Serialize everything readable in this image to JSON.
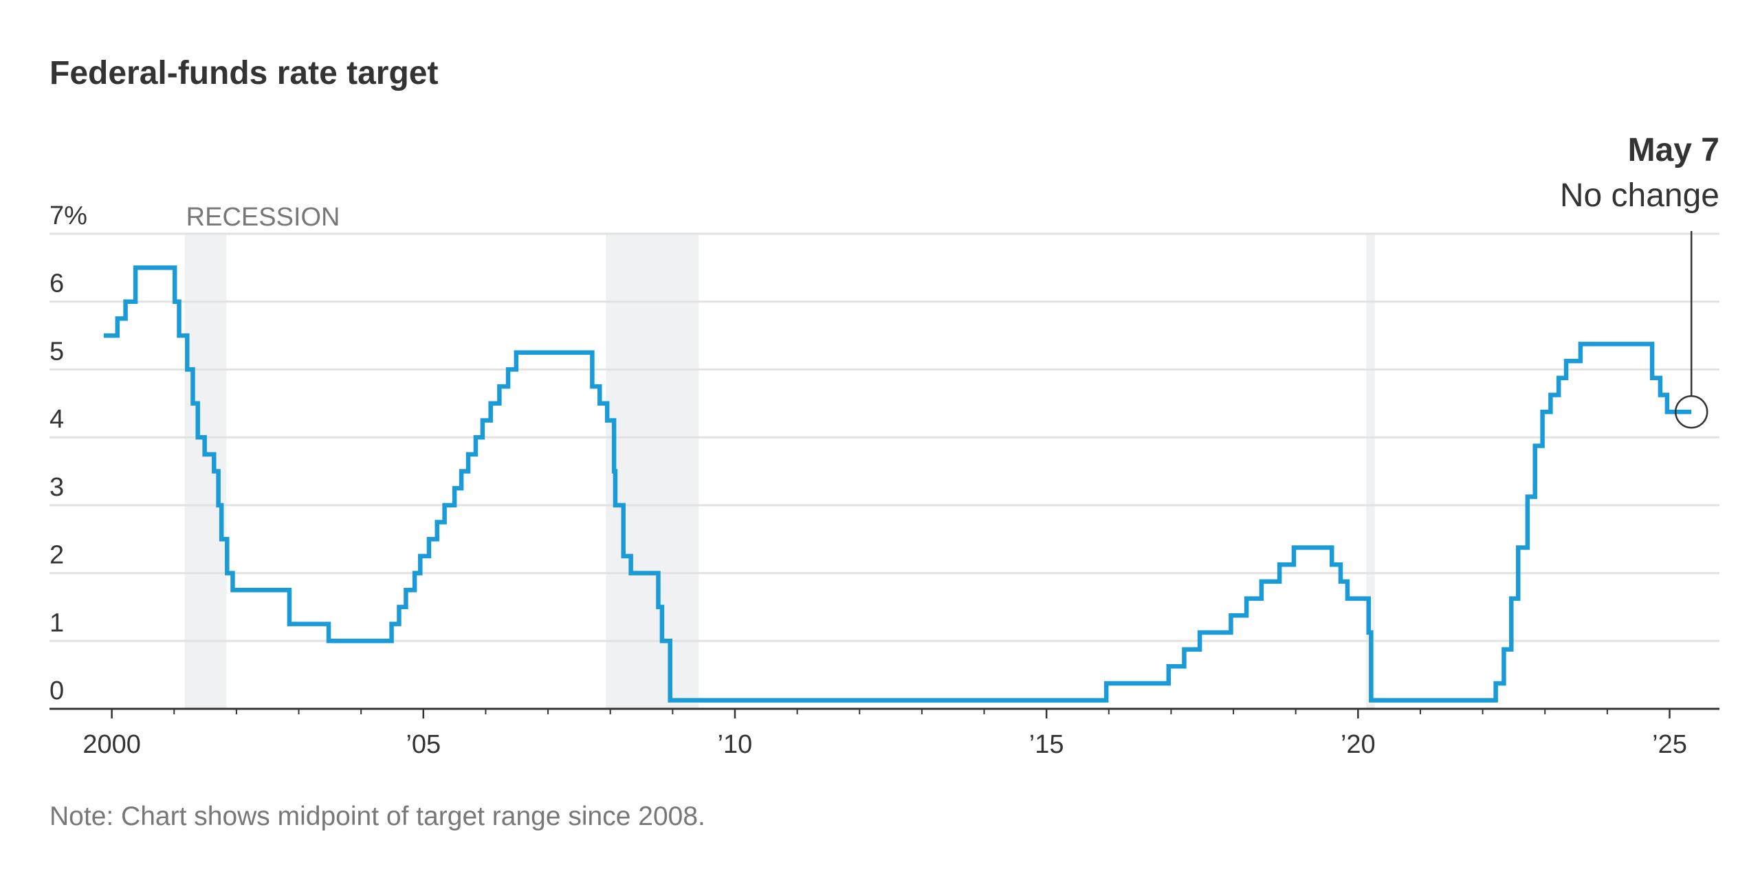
{
  "chart_data": {
    "type": "step",
    "title": "Federal-funds rate target",
    "note": "Note: Chart shows midpoint of target range since 2008.",
    "recession_label": "RECESSION",
    "recessions": [
      [
        2001.17,
        2001.84
      ],
      [
        2007.93,
        2009.42
      ],
      [
        2020.13,
        2020.27
      ]
    ],
    "recession_color": "#f0f1f2",
    "annotation": {
      "title": "May 7",
      "text": "No change",
      "x": 2025.35,
      "y": 4.375
    },
    "xlim": [
      1999,
      2025.8
    ],
    "xticks": [
      2000,
      {
        "value": 2005,
        "label": "’05"
      },
      {
        "value": 2010,
        "label": "’10"
      },
      {
        "value": 2015,
        "label": "’15"
      },
      {
        "value": 2020,
        "label": "’20"
      },
      {
        "value": 2025,
        "label": "’25"
      }
    ],
    "xminor_ticks": [
      2001,
      2002,
      2003,
      2004,
      2006,
      2007,
      2008,
      2009,
      2011,
      2012,
      2013,
      2014,
      2016,
      2017,
      2018,
      2019,
      2021,
      2022,
      2023,
      2024
    ],
    "ylim": [
      0,
      7
    ],
    "yticks": [
      0,
      1,
      2,
      3,
      4,
      5,
      6,
      {
        "value": 7,
        "label": "7%"
      }
    ],
    "grid": true,
    "series": [
      {
        "color": "#1a9bd7",
        "x": [
          1999.87,
          2000.09,
          2000.22,
          2000.38,
          2001.01,
          2001.08,
          2001.21,
          2001.3,
          2001.38,
          2001.49,
          2001.64,
          2001.71,
          2001.76,
          2001.85,
          2001.94,
          2002.85,
          2003.48,
          2004.49,
          2004.61,
          2004.72,
          2004.86,
          2004.95,
          2005.09,
          2005.22,
          2005.34,
          2005.5,
          2005.61,
          2005.72,
          2005.84,
          2005.95,
          2006.08,
          2006.22,
          2006.36,
          2006.49,
          2007.71,
          2007.83,
          2007.95,
          2008.06,
          2008.08,
          2008.21,
          2008.33,
          2008.77,
          2008.83,
          2008.96,
          2015.96,
          2016.96,
          2017.21,
          2017.46,
          2017.96,
          2018.21,
          2018.45,
          2018.74,
          2018.97,
          2019.58,
          2019.72,
          2019.83,
          2020.17,
          2020.21,
          2022.21,
          2022.34,
          2022.46,
          2022.57,
          2022.72,
          2022.84,
          2022.96,
          2023.09,
          2023.22,
          2023.34,
          2023.57,
          2024.72,
          2024.85,
          2024.96,
          2025.35
        ],
        "values": [
          5.5,
          5.75,
          6.0,
          6.5,
          6.0,
          5.5,
          5.0,
          4.5,
          4.0,
          3.75,
          3.5,
          3.0,
          2.5,
          2.0,
          1.75,
          1.25,
          1.0,
          1.25,
          1.5,
          1.75,
          2.0,
          2.25,
          2.5,
          2.75,
          3.0,
          3.25,
          3.5,
          3.75,
          4.0,
          4.25,
          4.5,
          4.75,
          5.0,
          5.25,
          4.75,
          4.5,
          4.25,
          3.5,
          3.0,
          2.25,
          2.0,
          1.5,
          1.0,
          0.125,
          0.375,
          0.625,
          0.875,
          1.125,
          1.375,
          1.625,
          1.875,
          2.125,
          2.375,
          2.125,
          1.875,
          1.625,
          1.125,
          0.125,
          0.375,
          0.875,
          1.625,
          2.375,
          3.125,
          3.875,
          4.375,
          4.625,
          4.875,
          5.125,
          5.375,
          4.875,
          4.625,
          4.375,
          4.375
        ]
      }
    ]
  }
}
